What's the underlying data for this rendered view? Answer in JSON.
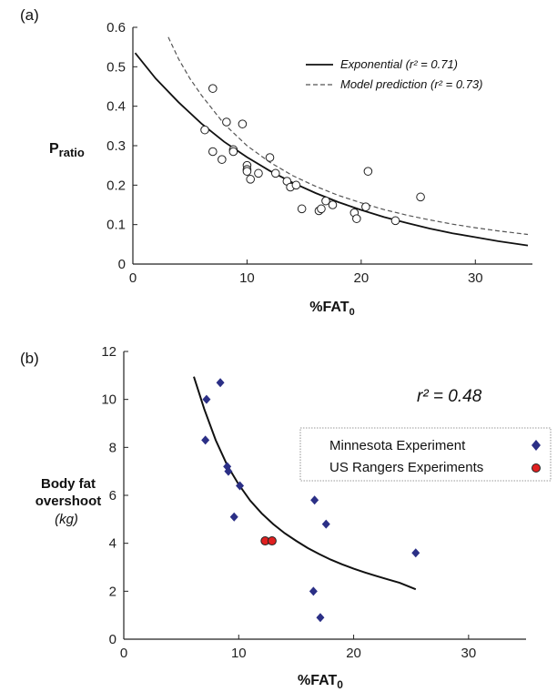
{
  "colors": {
    "minnesota": "#2b2f86",
    "rangers": "#e02020",
    "axis": "#222222"
  },
  "chart_data": [
    {
      "panel_label": "(a)",
      "type": "scatter",
      "xlabel_main": "%FAT",
      "xlabel_sub": "0",
      "ylabel_main": "P",
      "ylabel_sub": "ratio",
      "xlim": [
        0,
        35
      ],
      "ylim": [
        0,
        0.6
      ],
      "x_ticks": [
        0,
        10,
        20,
        30
      ],
      "y_ticks": [
        0,
        0.1,
        0.2,
        0.3,
        0.4,
        0.5,
        0.6
      ],
      "x_tick_labels": [
        "0",
        "10",
        "20",
        "30"
      ],
      "y_tick_labels": [
        "0",
        "0.1",
        "0.2",
        "0.3",
        "0.4",
        "0.5",
        "0.6"
      ],
      "points": [
        {
          "x": 6.3,
          "y": 0.34
        },
        {
          "x": 7.0,
          "y": 0.445
        },
        {
          "x": 7.0,
          "y": 0.285
        },
        {
          "x": 7.8,
          "y": 0.265
        },
        {
          "x": 8.2,
          "y": 0.36
        },
        {
          "x": 8.8,
          "y": 0.29
        },
        {
          "x": 8.8,
          "y": 0.285
        },
        {
          "x": 9.6,
          "y": 0.355
        },
        {
          "x": 10.0,
          "y": 0.25
        },
        {
          "x": 10.0,
          "y": 0.24
        },
        {
          "x": 10.0,
          "y": 0.235
        },
        {
          "x": 10.3,
          "y": 0.215
        },
        {
          "x": 11.0,
          "y": 0.23
        },
        {
          "x": 12.0,
          "y": 0.27
        },
        {
          "x": 12.5,
          "y": 0.23
        },
        {
          "x": 13.5,
          "y": 0.21
        },
        {
          "x": 13.8,
          "y": 0.195
        },
        {
          "x": 14.3,
          "y": 0.2
        },
        {
          "x": 14.8,
          "y": 0.14
        },
        {
          "x": 16.3,
          "y": 0.135
        },
        {
          "x": 16.5,
          "y": 0.14
        },
        {
          "x": 16.9,
          "y": 0.16
        },
        {
          "x": 17.5,
          "y": 0.15
        },
        {
          "x": 19.4,
          "y": 0.13
        },
        {
          "x": 19.6,
          "y": 0.115
        },
        {
          "x": 20.4,
          "y": 0.145
        },
        {
          "x": 20.6,
          "y": 0.235
        },
        {
          "x": 23.0,
          "y": 0.11
        },
        {
          "x": 25.2,
          "y": 0.17
        }
      ],
      "lines": [
        {
          "name": "Exponential",
          "r2_label": "(r² = 0.71)",
          "style": "solid",
          "x": [
            0.2,
            2,
            4,
            6,
            8,
            10,
            12,
            14,
            16,
            18,
            20,
            22,
            24,
            26,
            28,
            30,
            32,
            34.6
          ],
          "y": [
            0.535,
            0.47,
            0.41,
            0.356,
            0.31,
            0.271,
            0.236,
            0.206,
            0.18,
            0.157,
            0.137,
            0.119,
            0.104,
            0.09,
            0.078,
            0.068,
            0.058,
            0.047
          ]
        },
        {
          "name": "Model prediction",
          "r2_label": "(r² = 0.73)",
          "style": "dashed",
          "x": [
            3.1,
            4,
            5,
            6,
            8,
            10,
            12,
            14,
            16,
            18,
            20,
            22,
            24,
            26,
            28,
            30,
            32,
            34.6
          ],
          "y": [
            0.575,
            0.52,
            0.47,
            0.428,
            0.355,
            0.3,
            0.258,
            0.224,
            0.197,
            0.174,
            0.155,
            0.138,
            0.124,
            0.112,
            0.101,
            0.092,
            0.084,
            0.075
          ]
        }
      ],
      "legend_position": "top-right"
    },
    {
      "panel_label": "(b)",
      "type": "scatter",
      "xlabel_main": "%FAT",
      "xlabel_sub": "0",
      "ylabel_line1": "Body fat",
      "ylabel_line2": "overshoot",
      "ylabel_unit": "(kg)",
      "xlim": [
        0,
        35
      ],
      "ylim": [
        0,
        12
      ],
      "x_ticks": [
        0,
        10,
        20,
        30
      ],
      "y_ticks": [
        0,
        2,
        4,
        6,
        8,
        10,
        12
      ],
      "x_tick_labels": [
        "0",
        "10",
        "20",
        "30"
      ],
      "y_tick_labels": [
        "0",
        "2",
        "4",
        "6",
        "8",
        "10",
        "12"
      ],
      "annotation": "r² = 0.48",
      "series": [
        {
          "name": "Minnesota Experiment",
          "marker": "diamond",
          "points": [
            {
              "x": 7.1,
              "y": 8.3
            },
            {
              "x": 7.2,
              "y": 10.0
            },
            {
              "x": 8.4,
              "y": 10.7
            },
            {
              "x": 9.0,
              "y": 7.2
            },
            {
              "x": 9.1,
              "y": 7.0
            },
            {
              "x": 9.6,
              "y": 5.1
            },
            {
              "x": 10.1,
              "y": 6.4
            },
            {
              "x": 16.5,
              "y": 2.0
            },
            {
              "x": 16.6,
              "y": 5.8
            },
            {
              "x": 17.1,
              "y": 0.9
            },
            {
              "x": 17.6,
              "y": 4.8
            },
            {
              "x": 25.4,
              "y": 3.6
            }
          ]
        },
        {
          "name": "US Rangers Experiments",
          "marker": "circle",
          "points": [
            {
              "x": 12.3,
              "y": 4.1
            },
            {
              "x": 12.9,
              "y": 4.1
            }
          ]
        }
      ],
      "fit_line": {
        "style": "solid",
        "x": [
          6.1,
          7,
          8,
          9,
          10,
          11,
          12,
          13,
          14,
          15,
          16,
          17,
          18,
          19,
          20,
          21,
          22,
          23,
          24,
          25.4
        ],
        "y": [
          10.95,
          9.6,
          8.3,
          7.25,
          6.45,
          5.78,
          5.25,
          4.8,
          4.42,
          4.1,
          3.8,
          3.55,
          3.32,
          3.12,
          2.94,
          2.78,
          2.63,
          2.49,
          2.35,
          2.08
        ]
      },
      "legend_position": "right"
    }
  ]
}
